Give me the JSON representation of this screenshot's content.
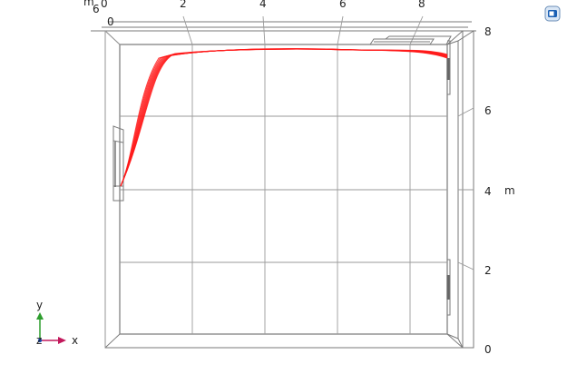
{
  "scene": {
    "top_axis": {
      "unit_label": "m",
      "ticks": [
        "0",
        "2",
        "4",
        "6",
        "8"
      ],
      "extra_labels": [
        "6",
        "0"
      ]
    },
    "right_axis": {
      "unit_label": "m",
      "ticks": [
        "0",
        "2",
        "4",
        "6",
        "8"
      ]
    },
    "triad": {
      "x": "x",
      "y": "y",
      "z": "z"
    },
    "streamline_color": "#ff1a1a",
    "streamline_count": 10
  },
  "icons": {
    "corner": "toolbar-logo-icon"
  }
}
